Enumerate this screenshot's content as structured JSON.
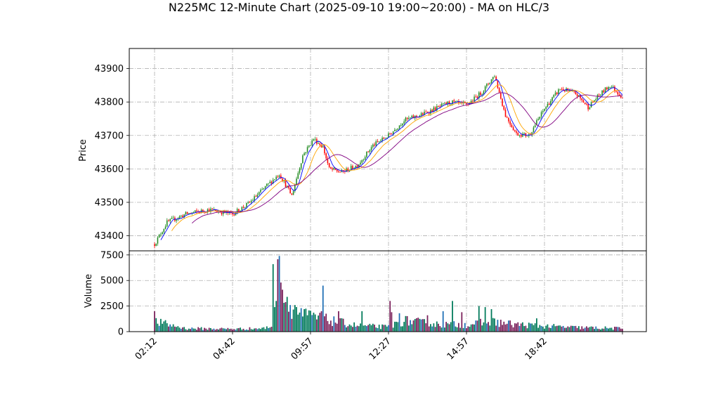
{
  "chart_data": {
    "type": "candlestick",
    "title": "N225MC 12-Minute Chart (2025-09-10 19:00~20:00) - MA on HLC/3",
    "price_panel": {
      "ylabel": "Price",
      "ylim": [
        43355,
        43960
      ],
      "yticks": [
        43400,
        43500,
        43600,
        43700,
        43800,
        43900
      ]
    },
    "volume_panel": {
      "ylabel": "Volume",
      "ylim": [
        0,
        7900
      ],
      "yticks": [
        0,
        2500,
        5000,
        7500
      ],
      "ytick_labels": [
        "0",
        "2500",
        "5000",
        "7500"
      ]
    },
    "xtick_labels": [
      "02:12",
      "04:42",
      "09:57",
      "12:27",
      "14:57",
      "18:42"
    ],
    "xtick_index": [
      0,
      50,
      100,
      150,
      200,
      250
    ],
    "bar_count": 301,
    "price_anchors": [
      [
        0,
        43375
      ],
      [
        8,
        43440
      ],
      [
        20,
        43465
      ],
      [
        35,
        43478
      ],
      [
        50,
        43465
      ],
      [
        60,
        43495
      ],
      [
        72,
        43550
      ],
      [
        80,
        43585
      ],
      [
        88,
        43520
      ],
      [
        95,
        43640
      ],
      [
        102,
        43690
      ],
      [
        108,
        43665
      ],
      [
        112,
        43600
      ],
      [
        120,
        43590
      ],
      [
        130,
        43610
      ],
      [
        140,
        43670
      ],
      [
        150,
        43700
      ],
      [
        160,
        43745
      ],
      [
        170,
        43760
      ],
      [
        180,
        43780
      ],
      [
        190,
        43800
      ],
      [
        200,
        43790
      ],
      [
        210,
        43830
      ],
      [
        218,
        43880
      ],
      [
        225,
        43760
      ],
      [
        232,
        43705
      ],
      [
        240,
        43700
      ],
      [
        250,
        43780
      ],
      [
        260,
        43840
      ],
      [
        270,
        43825
      ],
      [
        278,
        43785
      ],
      [
        285,
        43820
      ],
      [
        292,
        43850
      ],
      [
        300,
        43815
      ]
    ],
    "volume_anchors": [
      [
        0,
        1100
      ],
      [
        20,
        350
      ],
      [
        50,
        300
      ],
      [
        70,
        350
      ],
      [
        75,
        600
      ],
      [
        76,
        6000
      ],
      [
        80,
        5500
      ],
      [
        85,
        2800
      ],
      [
        95,
        1800
      ],
      [
        110,
        1300
      ],
      [
        130,
        650
      ],
      [
        150,
        500
      ],
      [
        160,
        1200
      ],
      [
        180,
        800
      ],
      [
        200,
        750
      ],
      [
        215,
        1100
      ],
      [
        230,
        800
      ],
      [
        250,
        600
      ],
      [
        270,
        450
      ],
      [
        300,
        350
      ]
    ],
    "volume_spikes": [
      [
        0,
        2000
      ],
      [
        76,
        6600
      ],
      [
        77,
        2400
      ],
      [
        78,
        3000
      ],
      [
        80,
        7400
      ],
      [
        81,
        4800
      ],
      [
        82,
        4100
      ],
      [
        85,
        3400
      ],
      [
        90,
        2600
      ],
      [
        94,
        2300
      ],
      [
        96,
        2200
      ],
      [
        107,
        2000
      ],
      [
        108,
        4500
      ],
      [
        118,
        2000
      ],
      [
        133,
        2000
      ],
      [
        151,
        3000
      ],
      [
        152,
        1900
      ],
      [
        157,
        1800
      ],
      [
        175,
        1600
      ],
      [
        185,
        2000
      ],
      [
        191,
        3000
      ],
      [
        197,
        1900
      ],
      [
        208,
        2500
      ],
      [
        212,
        2400
      ],
      [
        216,
        2200
      ],
      [
        245,
        1300
      ]
    ],
    "ma_series": [
      {
        "window": 5,
        "color": "#0000ff"
      },
      {
        "window": 12,
        "color": "#ffa500"
      },
      {
        "window": 25,
        "color": "#800080"
      }
    ],
    "colors": {
      "up": "#228b22",
      "down": "#ff0000",
      "vol_up": "#007a5a",
      "vol_down": "#7a1f5a",
      "vol_alt": "#1f6fb5"
    }
  }
}
